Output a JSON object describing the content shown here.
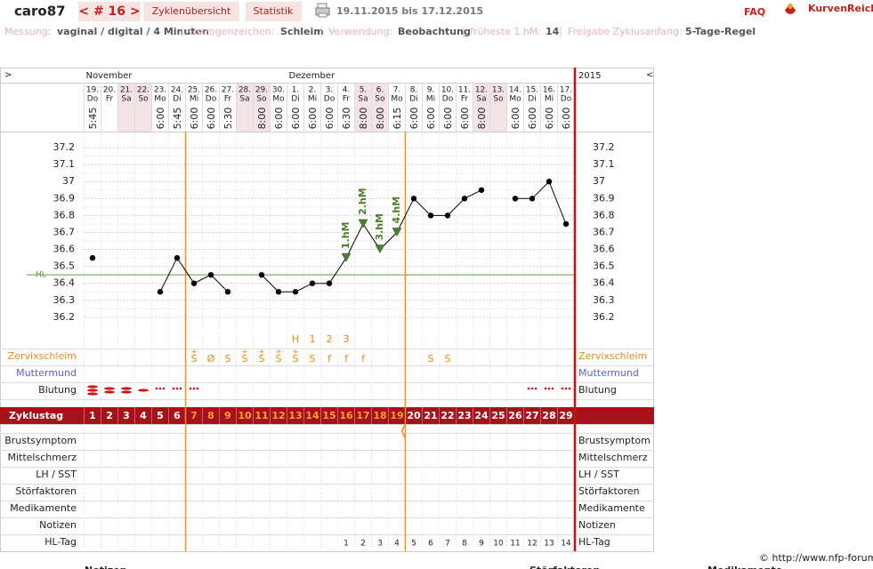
{
  "header": {
    "user": "caro87",
    "cycle_nav": "< # 16 >",
    "tabs": [
      "Zyklenübersicht",
      "Statistik"
    ],
    "date_range": "19.11.2015 bis 17.12.2015",
    "faq": "FAQ",
    "logo": "KurvenReich"
  },
  "info": [
    {
      "label": "Messung:",
      "value": "vaginal / digital / 4 Minuten"
    },
    {
      "label": "Östrogenzeichen:",
      "value": "Schleim"
    },
    {
      "label": "Verwendung:",
      "value": "Beobachtung"
    },
    {
      "label": "früheste 1.hM:",
      "value": "14"
    },
    {
      "label": "Freigabe Zyklusanfang:",
      "value": "5-Tage-Regel"
    }
  ],
  "chart_data": {
    "type": "line",
    "nav_prev": ">",
    "nav_next": "<",
    "year": "2015",
    "month_labels": [
      "November",
      null,
      null,
      null,
      null,
      null,
      null,
      null,
      null,
      null,
      null,
      null,
      "Dezember",
      null,
      null,
      null,
      null,
      null,
      null,
      null,
      null,
      null,
      null,
      null,
      null,
      null,
      null,
      null,
      null
    ],
    "categories": [
      "19.",
      "20.",
      "21.",
      "22.",
      "23.",
      "24.",
      "25.",
      "26.",
      "27.",
      "28.",
      "29.",
      "30.",
      "1.",
      "2.",
      "3.",
      "4.",
      "5.",
      "6.",
      "7.",
      "8.",
      "9.",
      "10.",
      "11.",
      "12.",
      "13.",
      "14.",
      "15.",
      "16.",
      "17."
    ],
    "weekdays": [
      "Do",
      "Fr",
      "Sa",
      "So",
      "Mo",
      "Di",
      "Mi",
      "Do",
      "Fr",
      "Sa",
      "So",
      "Mo",
      "Di",
      "Mi",
      "Do",
      "Fr",
      "Sa",
      "So",
      "Mo",
      "Di",
      "Mi",
      "Do",
      "Fr",
      "Sa",
      "So",
      "Mo",
      "Di",
      "Mi",
      "Do"
    ],
    "times": [
      "5:45",
      null,
      null,
      null,
      "6:00",
      "5:45",
      "6:00",
      "6:00",
      "5:30",
      null,
      "8:00",
      "6:00",
      "6:00",
      "6:00",
      "6:00",
      "6:30",
      "8:00",
      "8:00",
      "6:15",
      "6:00",
      "6:00",
      "6:00",
      "6:00",
      "8:00",
      null,
      "6:00",
      "6:00",
      "6:00",
      "6:00"
    ],
    "values": [
      36.55,
      null,
      null,
      null,
      36.35,
      36.55,
      36.4,
      36.45,
      36.35,
      null,
      36.45,
      36.35,
      36.35,
      36.4,
      36.4,
      36.55,
      36.75,
      36.6,
      36.7,
      36.9,
      36.8,
      36.8,
      36.9,
      36.95,
      null,
      36.9,
      36.9,
      37.0,
      36.75
    ],
    "color": "#000000",
    "hm_labels": [
      null,
      null,
      null,
      null,
      null,
      null,
      null,
      null,
      null,
      null,
      null,
      null,
      null,
      null,
      null,
      "1.hM",
      "2.hM",
      "3.hM",
      "4.hM",
      null,
      null,
      null,
      null,
      null,
      null,
      null,
      null,
      null,
      null
    ],
    "hm_color": "#4e7f2e",
    "coverline": {
      "label": "HL",
      "value": 36.45,
      "color": "#6a9a45"
    },
    "ylim": [
      36.0,
      37.3
    ],
    "yticks": [
      36.2,
      36.3,
      36.4,
      36.5,
      36.6,
      36.7,
      36.8,
      36.9,
      37,
      37.1,
      37.2
    ],
    "grid": true
  },
  "rows": {
    "peak": [
      null,
      null,
      null,
      null,
      null,
      null,
      null,
      null,
      null,
      null,
      null,
      null,
      "H",
      "1",
      "2",
      "3",
      null,
      null,
      null,
      null,
      null,
      null,
      null,
      null,
      null,
      null,
      null,
      null,
      null
    ],
    "zervix_label": "Zervixschleim",
    "zervix_marks": [
      null,
      null,
      null,
      null,
      null,
      null,
      "+",
      null,
      null,
      "+",
      "+",
      "+",
      "+",
      null,
      null,
      null,
      null,
      null,
      null,
      null,
      null,
      null,
      null,
      null,
      null,
      null,
      null,
      null,
      null
    ],
    "zervix": [
      null,
      null,
      null,
      null,
      null,
      null,
      "S",
      "Ø",
      "S",
      "S",
      "S",
      "S",
      "S",
      "S",
      "f",
      "f",
      "f",
      null,
      null,
      null,
      "S",
      "S",
      null,
      null,
      null,
      null,
      null,
      null,
      null
    ],
    "muttermund_label": "Muttermund",
    "blutung_label": "Blutung",
    "zyklustag_label": "Zyklustag",
    "zyklustag": [
      1,
      2,
      3,
      4,
      5,
      6,
      7,
      8,
      9,
      10,
      11,
      12,
      13,
      14,
      15,
      16,
      17,
      18,
      19,
      20,
      21,
      22,
      23,
      24,
      25,
      26,
      27,
      28,
      29
    ],
    "extra_rows": [
      "Brustsymptom",
      "Mittelschmerz",
      "LH / SST",
      "Störfaktoren",
      "Medikamente",
      "Notizen"
    ],
    "hl_tag_label": "HL-Tag",
    "hl_tag": [
      null,
      null,
      null,
      null,
      null,
      null,
      null,
      null,
      null,
      null,
      null,
      null,
      null,
      null,
      null,
      1,
      2,
      3,
      4,
      5,
      6,
      7,
      8,
      9,
      10,
      11,
      12,
      13,
      14
    ]
  },
  "footer": {
    "copyright": "© http://www.nfp-forum.de",
    "bottom_labels": [
      "Notizen",
      "Störfaktoren",
      "Medikamente"
    ]
  }
}
